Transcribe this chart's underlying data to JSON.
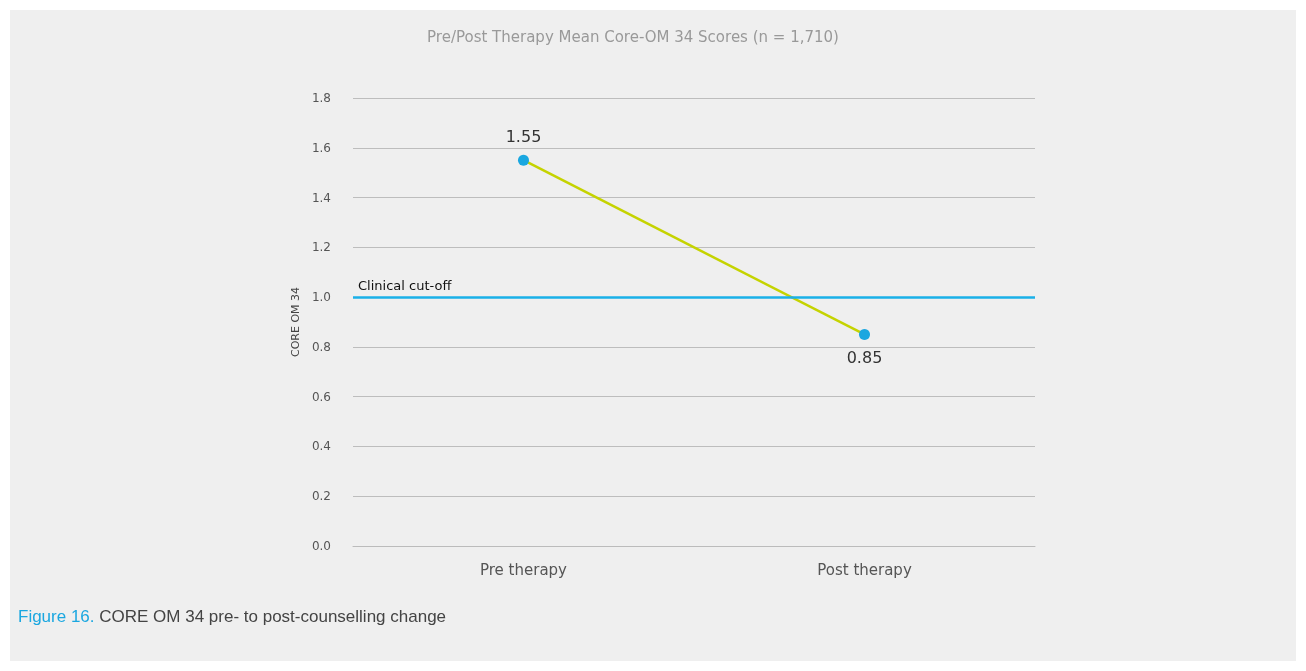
{
  "chart_data": {
    "type": "line",
    "title": "Pre/Post Therapy Mean Core-OM 34 Scores (n = 1,710)",
    "ylabel": "CORE OM 34",
    "categories": [
      "Pre therapy",
      "Post therapy"
    ],
    "series": [
      {
        "color": "#c5d300",
        "values": [
          1.55,
          0.85
        ]
      }
    ],
    "marker": "circle",
    "data_labels": true,
    "ylim": [
      0,
      1.8
    ],
    "yticks": [
      {
        "value": 0,
        "label": "0.0"
      },
      0.2,
      0.4,
      0.6,
      0.8,
      {
        "value": 1,
        "label": "1.0"
      },
      1.2,
      1.4,
      1.6,
      1.8
    ],
    "grid": "y",
    "ref_lines": [
      {
        "axis": "y",
        "value": 1.0,
        "label": "Clinical cut-off",
        "color": "#1ab0e8"
      }
    ],
    "annotations": [
      "Figure 16. CORE OM 34 pre- to post-counselling change"
    ]
  }
}
